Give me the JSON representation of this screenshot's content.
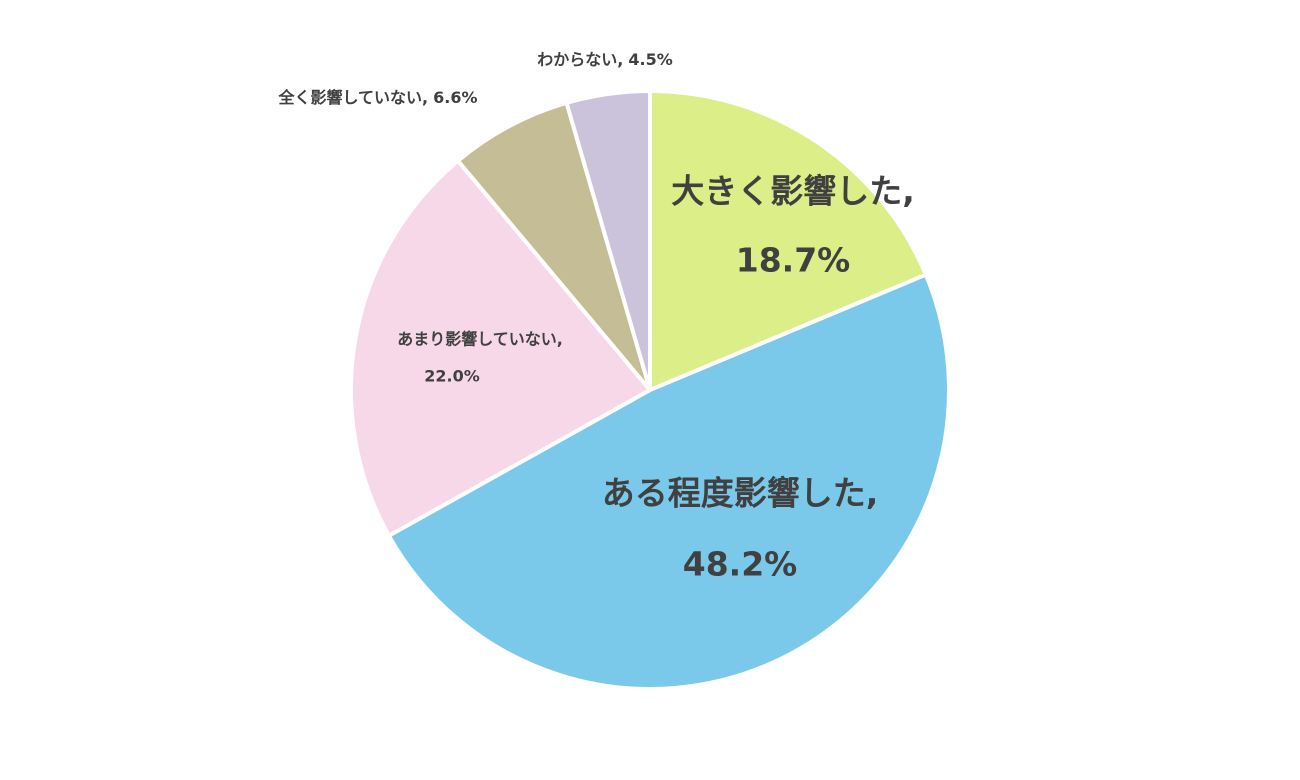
{
  "chart_data": {
    "type": "pie",
    "categories": [
      "大きく影響した,",
      "ある程度影響した,",
      "あまり影響していない,",
      "全く影響していない,",
      "わからない,"
    ],
    "values": [
      18.7,
      48.2,
      22.0,
      6.6,
      4.5
    ],
    "value_labels": [
      "18.7%",
      "48.2%",
      "22.0%",
      "6.6%",
      "4.5%"
    ],
    "colors": [
      "#dbee87",
      "#7bc9ea",
      "#f7d8e8",
      "#c4bd95",
      "#cbc2dc"
    ]
  }
}
